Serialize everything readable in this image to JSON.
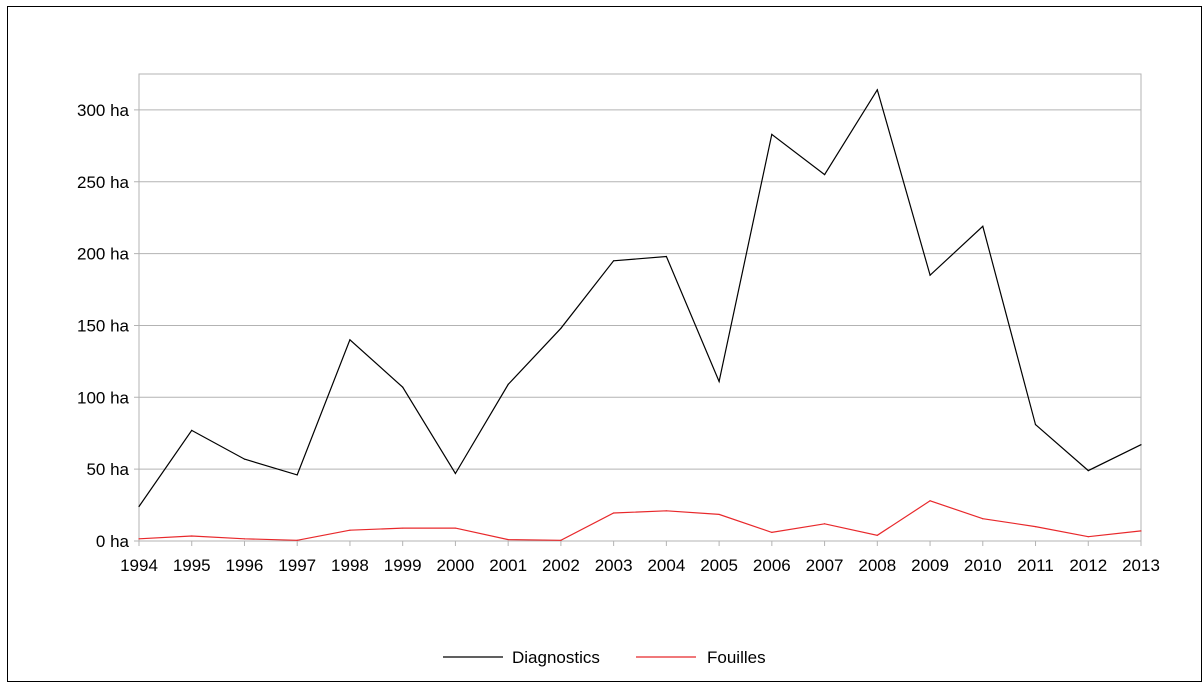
{
  "chart_data": {
    "type": "line",
    "title": "",
    "xlabel": "",
    "ylabel": "",
    "categories": [
      "1994",
      "1995",
      "1996",
      "1997",
      "1998",
      "1999",
      "2000",
      "2001",
      "2002",
      "2003",
      "2004",
      "2005",
      "2006",
      "2007",
      "2008",
      "2009",
      "2010",
      "2011",
      "2012",
      "2013"
    ],
    "y_unit_suffix": " ha",
    "ylim": [
      0,
      325
    ],
    "yticks": [
      0,
      50,
      100,
      150,
      200,
      250,
      300
    ],
    "ytick_labels": [
      "0 ha",
      "50 ha",
      "100 ha",
      "150 ha",
      "200 ha",
      "250 ha",
      "300 ha"
    ],
    "grid": true,
    "legend_position": "bottom",
    "series": [
      {
        "name": "Diagnostics",
        "color": "#000000",
        "values": [
          24,
          77,
          57,
          46,
          140,
          107,
          47,
          109,
          148,
          195,
          198,
          111,
          283,
          255,
          314,
          185,
          219,
          81,
          49,
          67
        ]
      },
      {
        "name": "Fouilles",
        "color": "#e8282b",
        "values": [
          1.5,
          3.5,
          1.5,
          0.5,
          7.5,
          9,
          9,
          1,
          0.5,
          19.5,
          21,
          18.5,
          6,
          12,
          4,
          28,
          15.5,
          10,
          3,
          7
        ]
      }
    ]
  }
}
